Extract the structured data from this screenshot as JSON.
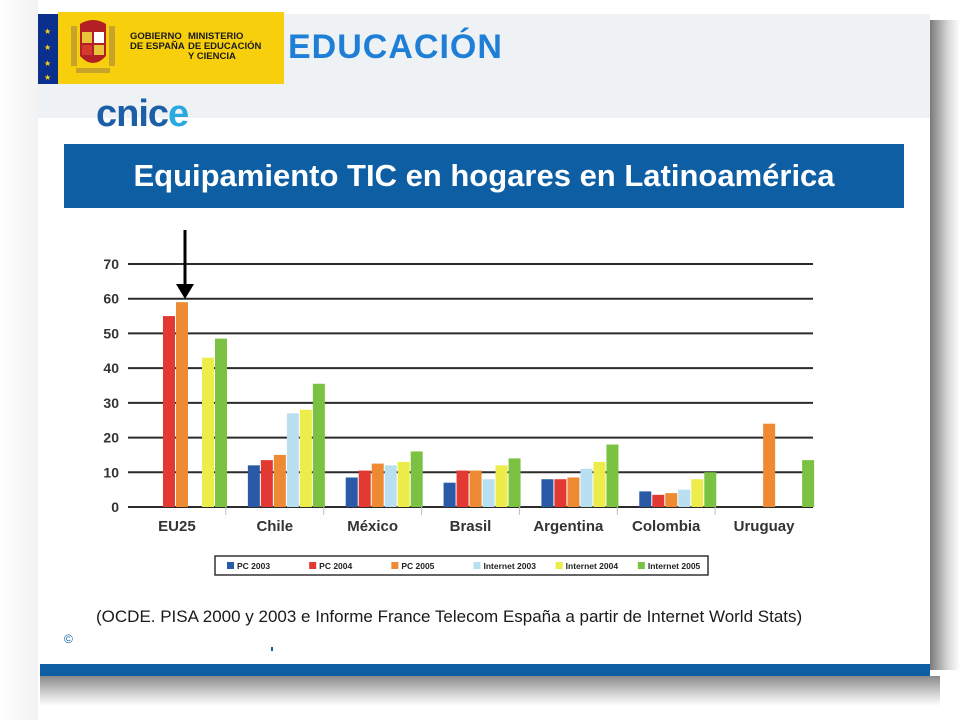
{
  "header": {
    "gov_line1": "GOBIERNO",
    "gov_line2": "DE ESPAÑA",
    "min_line1": "MINISTERIO",
    "min_line2": "DE EDUCACIÓN",
    "min_line3": "Y CIENCIA",
    "section": "EDUCACIÓN",
    "brand_main": "cnic",
    "brand_tail": "e"
  },
  "slide_title": "Equipamiento TIC en hogares en Latinoamérica",
  "source_note": "(OCDE. PISA 2000 y 2003 e Informe France Telecom España a partir de Internet World Stats)",
  "footer_fragment": "©",
  "colors": {
    "PC 2003": "#2a5aa6",
    "PC 2004": "#e23a32",
    "PC 2005": "#ee8a34",
    "Internet 2003": "#b9e0f0",
    "Internet 2004": "#ecec4a",
    "Internet 2005": "#7cc242",
    "title_bar": "#0e5ea3"
  },
  "chart_data": {
    "type": "bar",
    "title": "",
    "xlabel": "",
    "ylabel": "",
    "ylim": [
      0,
      70
    ],
    "yticks": [
      0,
      10,
      20,
      30,
      40,
      50,
      60,
      70
    ],
    "grid": true,
    "legend": "bottom",
    "categories": [
      "EU25",
      "Chile",
      "México",
      "Brasil",
      "Argentina",
      "Colombia",
      "Uruguay"
    ],
    "series": [
      {
        "name": "PC 2003",
        "values": [
          null,
          12,
          8.5,
          7,
          8,
          4.5,
          null
        ]
      },
      {
        "name": "PC 2004",
        "values": [
          55,
          13.5,
          10.5,
          10.5,
          8,
          3.5,
          null
        ]
      },
      {
        "name": "PC 2005",
        "values": [
          59,
          15,
          12.5,
          10.5,
          8.5,
          4,
          24
        ]
      },
      {
        "name": "Internet 2003",
        "values": [
          null,
          27,
          12,
          8,
          11,
          5,
          null
        ]
      },
      {
        "name": "Internet 2004",
        "values": [
          43,
          28,
          13,
          12,
          13,
          8,
          null
        ]
      },
      {
        "name": "Internet 2005",
        "values": [
          48.5,
          35.5,
          16,
          14,
          18,
          10,
          13.5
        ]
      }
    ],
    "annotation": "arrow pointing to EU25 PC 2005 bar"
  }
}
